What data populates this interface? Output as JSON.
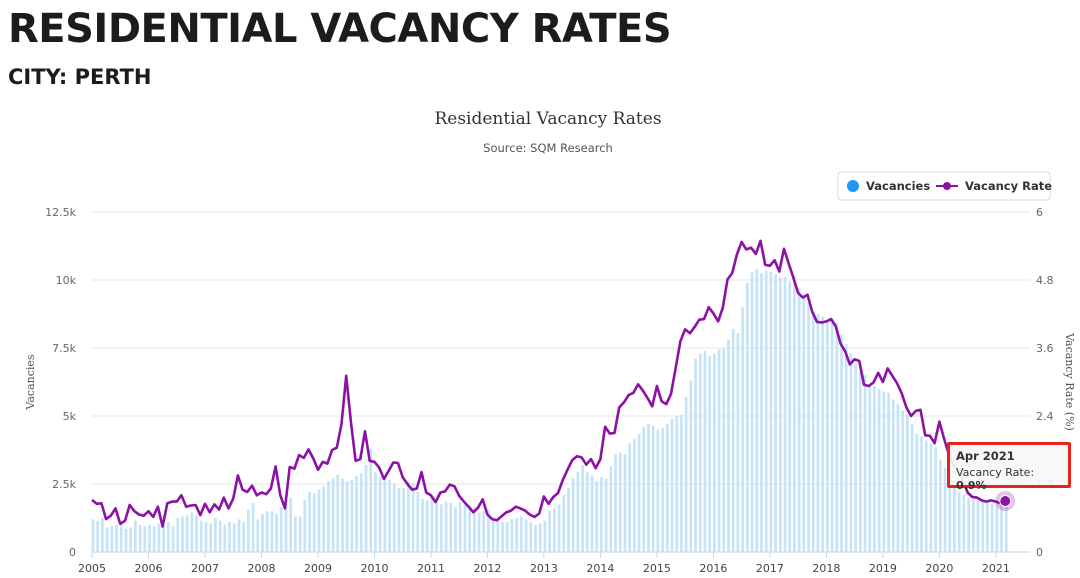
{
  "page": {
    "title": "RESIDENTIAL VACANCY RATES",
    "subtitle": "CITY: PERTH"
  },
  "colors": {
    "vacancies": "#2196f3",
    "vacancies_bar": "#c6e3f7",
    "vacancy_rate": "#8b12a5",
    "tooltip_border": "#e8231c"
  },
  "tooltip": {
    "date": "Apr 2021",
    "series": "Vacancy Rate",
    "value": "0.9%"
  },
  "chart_data": {
    "type": "line",
    "title": "Residential Vacancy Rates",
    "subtitle": "Source: SQM Research",
    "legend": {
      "placement": "top-right",
      "items": [
        "Vacancies",
        "Vacancy Rate"
      ]
    },
    "grid": true,
    "x_axis": {
      "ticks": [
        "2005",
        "2006",
        "2007",
        "2008",
        "2009",
        "2010",
        "2011",
        "2012",
        "2013",
        "2014",
        "2015",
        "2016",
        "2017",
        "2018",
        "2019",
        "2020",
        "2021"
      ],
      "start": 2005.0,
      "end": 2021.25
    },
    "y_axis_left": {
      "label": "Vacancies",
      "ticks": [
        "0",
        "2.5k",
        "5k",
        "7.5k",
        "10k",
        "12.5k"
      ],
      "ylim": [
        0,
        12500
      ]
    },
    "y_axis_right": {
      "label": "Vacancy Rate (%)",
      "ticks": [
        "0",
        "1.2",
        "2.4",
        "3.6",
        "4.8",
        "6"
      ],
      "ylim": [
        0,
        6
      ]
    },
    "series": [
      {
        "name": "Vacancies",
        "type": "column",
        "axis": "left",
        "x_start": 2005.0,
        "x_step": 0.08333,
        "values": [
          1200,
          1150,
          1250,
          900,
          950,
          1000,
          1100,
          850,
          900,
          1150,
          1000,
          950,
          1000,
          950,
          1050,
          1000,
          1100,
          950,
          1250,
          1300,
          1350,
          1450,
          1350,
          1150,
          1100,
          1050,
          1250,
          1150,
          1000,
          1100,
          1050,
          1200,
          1100,
          1550,
          1800,
          1200,
          1400,
          1500,
          1500,
          1400,
          1650,
          1750,
          2000,
          1300,
          1300,
          1900,
          2200,
          2150,
          2300,
          2400,
          2600,
          2700,
          2850,
          2700,
          2600,
          2650,
          2800,
          2900,
          3200,
          3800,
          2950,
          2750,
          2700,
          2650,
          2500,
          2350,
          2350,
          2600,
          2550,
          2200,
          1950,
          1900,
          2050,
          1850,
          1750,
          1850,
          1800,
          1650,
          1850,
          1750,
          1700,
          1650,
          1450,
          1500,
          1550,
          1200,
          1150,
          1100,
          1100,
          1200,
          1250,
          1300,
          1200,
          1100,
          1000,
          1050,
          1150,
          1500,
          1600,
          1750,
          2100,
          2350,
          2700,
          2950,
          3200,
          2950,
          2800,
          2600,
          2750,
          2700,
          3150,
          3600,
          3650,
          3600,
          4000,
          4150,
          4350,
          4600,
          4700,
          4650,
          4500,
          4550,
          4700,
          4900,
          5000,
          5050,
          5700,
          6300,
          7100,
          7300,
          7400,
          7200,
          7300,
          7450,
          7500,
          7800,
          8200,
          8050,
          9000,
          9900,
          10300,
          10400,
          10250,
          10350,
          10300,
          10200,
          10100,
          10100,
          9950,
          10150,
          9700,
          9450,
          9150,
          8800,
          8750,
          8650,
          8500,
          8600,
          8450,
          8000,
          7650,
          7300,
          6900,
          6650,
          6500,
          6150,
          6100,
          6000,
          5900,
          5850,
          5600,
          5450,
          5200,
          5050,
          4700,
          4350,
          4250,
          4100,
          4000,
          3850,
          3400,
          3100,
          2800,
          2450,
          2200,
          2100,
          2000,
          1950,
          1900,
          1850,
          1800,
          1780,
          1750,
          1750,
          1750
        ]
      },
      {
        "name": "Vacancy Rate",
        "type": "line",
        "axis": "right",
        "x_start": 2005.0,
        "x_step": 0.08333,
        "values": [
          0.92,
          0.85,
          0.86,
          0.58,
          0.64,
          0.77,
          0.5,
          0.55,
          0.83,
          0.72,
          0.66,
          0.64,
          0.72,
          0.62,
          0.8,
          0.45,
          0.86,
          0.89,
          0.89,
          1.0,
          0.8,
          0.82,
          0.83,
          0.65,
          0.85,
          0.7,
          0.84,
          0.75,
          0.96,
          0.77,
          0.94,
          1.35,
          1.1,
          1.06,
          1.17,
          1.0,
          1.05,
          1.02,
          1.12,
          1.51,
          1.0,
          0.77,
          1.5,
          1.47,
          1.71,
          1.66,
          1.81,
          1.65,
          1.45,
          1.59,
          1.56,
          1.8,
          1.84,
          2.26,
          3.11,
          2.3,
          1.61,
          1.64,
          2.13,
          1.61,
          1.59,
          1.49,
          1.29,
          1.43,
          1.58,
          1.57,
          1.32,
          1.2,
          1.1,
          1.12,
          1.41,
          1.05,
          1.0,
          0.88,
          1.05,
          1.07,
          1.19,
          1.16,
          0.99,
          0.89,
          0.8,
          0.7,
          0.78,
          0.93,
          0.66,
          0.58,
          0.56,
          0.63,
          0.7,
          0.73,
          0.8,
          0.77,
          0.73,
          0.66,
          0.62,
          0.68,
          0.98,
          0.85,
          0.97,
          1.04,
          1.27,
          1.45,
          1.62,
          1.69,
          1.67,
          1.54,
          1.64,
          1.48,
          1.64,
          2.21,
          2.09,
          2.1,
          2.55,
          2.64,
          2.77,
          2.81,
          2.96,
          2.85,
          2.72,
          2.57,
          2.93,
          2.66,
          2.61,
          2.79,
          3.25,
          3.72,
          3.93,
          3.86,
          3.97,
          4.1,
          4.11,
          4.32,
          4.21,
          4.07,
          4.31,
          4.81,
          4.92,
          5.25,
          5.47,
          5.34,
          5.37,
          5.26,
          5.49,
          5.07,
          5.05,
          5.15,
          4.95,
          5.35,
          5.09,
          4.84,
          4.57,
          4.49,
          4.54,
          4.24,
          4.06,
          4.05,
          4.07,
          4.11,
          3.98,
          3.68,
          3.54,
          3.31,
          3.4,
          3.37,
          2.95,
          2.93,
          2.99,
          3.16,
          3.0,
          3.24,
          3.11,
          2.98,
          2.8,
          2.55,
          2.4,
          2.49,
          2.51,
          2.06,
          2.05,
          1.92,
          2.3,
          2.0,
          1.73,
          1.53,
          1.43,
          1.27,
          1.05,
          0.97,
          0.96,
          0.91,
          0.89,
          0.91,
          0.89,
          0.86,
          0.9
        ]
      }
    ]
  }
}
